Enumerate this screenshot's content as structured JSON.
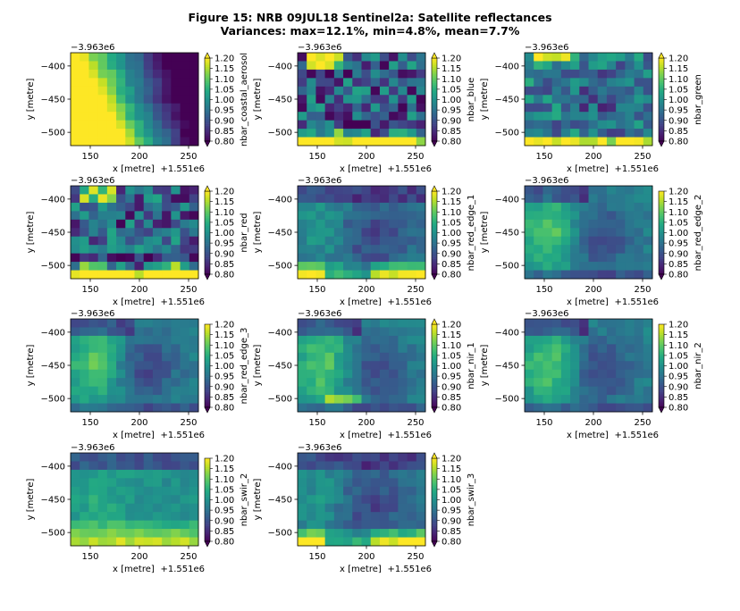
{
  "figure": {
    "title_line1": "Figure 15: NRB 09JUL18  Sentinel2a: Satellite reflectances",
    "title_line2": "Variances: max=12.1%, min=4.8%, mean=7.7%"
  },
  "colors": {
    "viridis": [
      "#440154",
      "#482475",
      "#414487",
      "#355f8d",
      "#2a788e",
      "#21918c",
      "#22a884",
      "#44bf70",
      "#7ad151",
      "#bddf26",
      "#fde725"
    ]
  },
  "chart_data": [
    {
      "type": "heatmap",
      "panel": 1,
      "band": "nbar_coastal_aerosol",
      "pattern": "aerosol",
      "xlabel": "x [metre]",
      "ylabel": "y [metre]",
      "x_offset_label": "+1.551e6",
      "y_offset_label": "−3.963e6",
      "xlim": [
        130,
        260
      ],
      "ylim": [
        -520,
        -380
      ],
      "x_ticks": [
        150,
        200,
        250
      ],
      "y_ticks": [
        -400,
        -450,
        -500
      ],
      "clim": [
        0.8,
        1.2
      ],
      "colorbar_ticks": [
        "0.80",
        "0.85",
        "0.90",
        "0.95",
        "1.00",
        "1.05",
        "1.10",
        "1.15",
        "1.20"
      ],
      "colorbar_extend": "both"
    },
    {
      "type": "heatmap",
      "panel": 2,
      "band": "nbar_blue",
      "pattern": "blue",
      "xlabel": "x [metre]",
      "ylabel": "y [metre]",
      "x_offset_label": "+1.551e6",
      "y_offset_label": "−3.963e6",
      "xlim": [
        130,
        260
      ],
      "ylim": [
        -520,
        -380
      ],
      "x_ticks": [
        150,
        200,
        250
      ],
      "y_ticks": [
        -400,
        -450,
        -500
      ],
      "clim": [
        0.8,
        1.2
      ],
      "colorbar_ticks": [
        "0.80",
        "0.85",
        "0.90",
        "0.95",
        "1.00",
        "1.05",
        "1.10",
        "1.15",
        "1.20"
      ],
      "colorbar_extend": "both"
    },
    {
      "type": "heatmap",
      "panel": 3,
      "band": "nbar_green",
      "pattern": "green",
      "xlabel": "x [metre]",
      "ylabel": "y [metre]",
      "x_offset_label": "+1.551e6",
      "y_offset_label": "−3.963e6",
      "xlim": [
        130,
        260
      ],
      "ylim": [
        -520,
        -380
      ],
      "x_ticks": [
        150,
        200,
        250
      ],
      "y_ticks": [
        -400,
        -450,
        -500
      ],
      "clim": [
        0.8,
        1.2
      ],
      "colorbar_ticks": [
        "0.80",
        "0.85",
        "0.90",
        "0.95",
        "1.00",
        "1.05",
        "1.10",
        "1.15",
        "1.20"
      ],
      "colorbar_extend": "both"
    },
    {
      "type": "heatmap",
      "panel": 4,
      "band": "nbar_red",
      "pattern": "red",
      "xlabel": "x [metre]",
      "ylabel": "y [metre]",
      "x_offset_label": "+1.551e6",
      "y_offset_label": "−3.963e6",
      "xlim": [
        130,
        260
      ],
      "ylim": [
        -520,
        -380
      ],
      "x_ticks": [
        150,
        200,
        250
      ],
      "y_ticks": [
        -400,
        -450,
        -500
      ],
      "clim": [
        0.8,
        1.2
      ],
      "colorbar_ticks": [
        "0.80",
        "0.85",
        "0.90",
        "0.95",
        "1.00",
        "1.05",
        "1.10",
        "1.15",
        "1.20"
      ],
      "colorbar_extend": "both"
    },
    {
      "type": "heatmap",
      "panel": 5,
      "band": "nbar_red_edge_1",
      "pattern": "red_edge_1",
      "xlabel": "x [metre]",
      "ylabel": "y [metre]",
      "x_offset_label": "+1.551e6",
      "y_offset_label": "−3.963e6",
      "xlim": [
        130,
        260
      ],
      "ylim": [
        -520,
        -380
      ],
      "x_ticks": [
        150,
        200,
        250
      ],
      "y_ticks": [
        -400,
        -450,
        -500
      ],
      "clim": [
        0.8,
        1.2
      ],
      "colorbar_ticks": [
        "0.80",
        "0.85",
        "0.90",
        "0.95",
        "1.00",
        "1.05",
        "1.10",
        "1.15",
        "1.20"
      ],
      "colorbar_extend": "both"
    },
    {
      "type": "heatmap",
      "panel": 6,
      "band": "nbar_red_edge_2",
      "pattern": "red_edge_2",
      "xlabel": "x [metre]",
      "ylabel": "y [metre]",
      "x_offset_label": "+1.551e6",
      "y_offset_label": "−3.963e6",
      "xlim": [
        130,
        260
      ],
      "ylim": [
        -520,
        -380
      ],
      "x_ticks": [
        150,
        200,
        250
      ],
      "y_ticks": [
        -400,
        -450,
        -500
      ],
      "clim": [
        0.8,
        1.2
      ],
      "colorbar_ticks": [
        "0.80",
        "0.85",
        "0.90",
        "0.95",
        "1.00",
        "1.05",
        "1.10",
        "1.15",
        "1.20"
      ],
      "colorbar_extend": "min"
    },
    {
      "type": "heatmap",
      "panel": 7,
      "band": "nbar_red_edge_3",
      "pattern": "red_edge_3",
      "xlabel": "x [metre]",
      "ylabel": "y [metre]",
      "x_offset_label": "+1.551e6",
      "y_offset_label": "−3.963e6",
      "xlim": [
        130,
        260
      ],
      "ylim": [
        -520,
        -380
      ],
      "x_ticks": [
        150,
        200,
        250
      ],
      "y_ticks": [
        -400,
        -450,
        -500
      ],
      "clim": [
        0.8,
        1.2
      ],
      "colorbar_ticks": [
        "0.80",
        "0.85",
        "0.90",
        "0.95",
        "1.00",
        "1.05",
        "1.10",
        "1.15",
        "1.20"
      ],
      "colorbar_extend": "min"
    },
    {
      "type": "heatmap",
      "panel": 8,
      "band": "nbar_nir_1",
      "pattern": "nir_1",
      "xlabel": "x [metre]",
      "ylabel": "y [metre]",
      "x_offset_label": "+1.551e6",
      "y_offset_label": "−3.963e6",
      "xlim": [
        130,
        260
      ],
      "ylim": [
        -520,
        -380
      ],
      "x_ticks": [
        150,
        200,
        250
      ],
      "y_ticks": [
        -400,
        -450,
        -500
      ],
      "clim": [
        0.8,
        1.2
      ],
      "colorbar_ticks": [
        "0.80",
        "0.85",
        "0.90",
        "0.95",
        "1.00",
        "1.05",
        "1.10",
        "1.15",
        "1.20"
      ],
      "colorbar_extend": "both"
    },
    {
      "type": "heatmap",
      "panel": 9,
      "band": "nbar_nir_2",
      "pattern": "nir_2",
      "xlabel": "x [metre]",
      "ylabel": "y [metre]",
      "x_offset_label": "+1.551e6",
      "y_offset_label": "−3.963e6",
      "xlim": [
        130,
        260
      ],
      "ylim": [
        -520,
        -380
      ],
      "x_ticks": [
        150,
        200,
        250
      ],
      "y_ticks": [
        -400,
        -450,
        -500
      ],
      "clim": [
        0.8,
        1.2
      ],
      "colorbar_ticks": [
        "0.80",
        "0.85",
        "0.90",
        "0.95",
        "1.00",
        "1.05",
        "1.10",
        "1.15",
        "1.20"
      ],
      "colorbar_extend": "min"
    },
    {
      "type": "heatmap",
      "panel": 10,
      "band": "nbar_swir_2",
      "pattern": "swir_2",
      "xlabel": "x [metre]",
      "ylabel": "y [metre]",
      "x_offset_label": "+1.551e6",
      "y_offset_label": "−3.963e6",
      "xlim": [
        130,
        260
      ],
      "ylim": [
        -520,
        -380
      ],
      "x_ticks": [
        150,
        200,
        250
      ],
      "y_ticks": [
        -400,
        -450,
        -500
      ],
      "clim": [
        0.8,
        1.2
      ],
      "colorbar_ticks": [
        "0.80",
        "0.85",
        "0.90",
        "0.95",
        "1.00",
        "1.05",
        "1.10",
        "1.15",
        "1.20"
      ],
      "colorbar_extend": "min"
    },
    {
      "type": "heatmap",
      "panel": 11,
      "band": "nbar_swir_3",
      "pattern": "swir_3",
      "xlabel": "x [metre]",
      "ylabel": "y [metre]",
      "x_offset_label": "+1.551e6",
      "y_offset_label": "−3.963e6",
      "xlim": [
        130,
        260
      ],
      "ylim": [
        -520,
        -380
      ],
      "x_ticks": [
        150,
        200,
        250
      ],
      "y_ticks": [
        -400,
        -450,
        -500
      ],
      "clim": [
        0.8,
        1.2
      ],
      "colorbar_ticks": [
        "0.80",
        "0.85",
        "0.90",
        "0.95",
        "1.00",
        "1.05",
        "1.10",
        "1.15",
        "1.20"
      ],
      "colorbar_extend": "both"
    }
  ]
}
